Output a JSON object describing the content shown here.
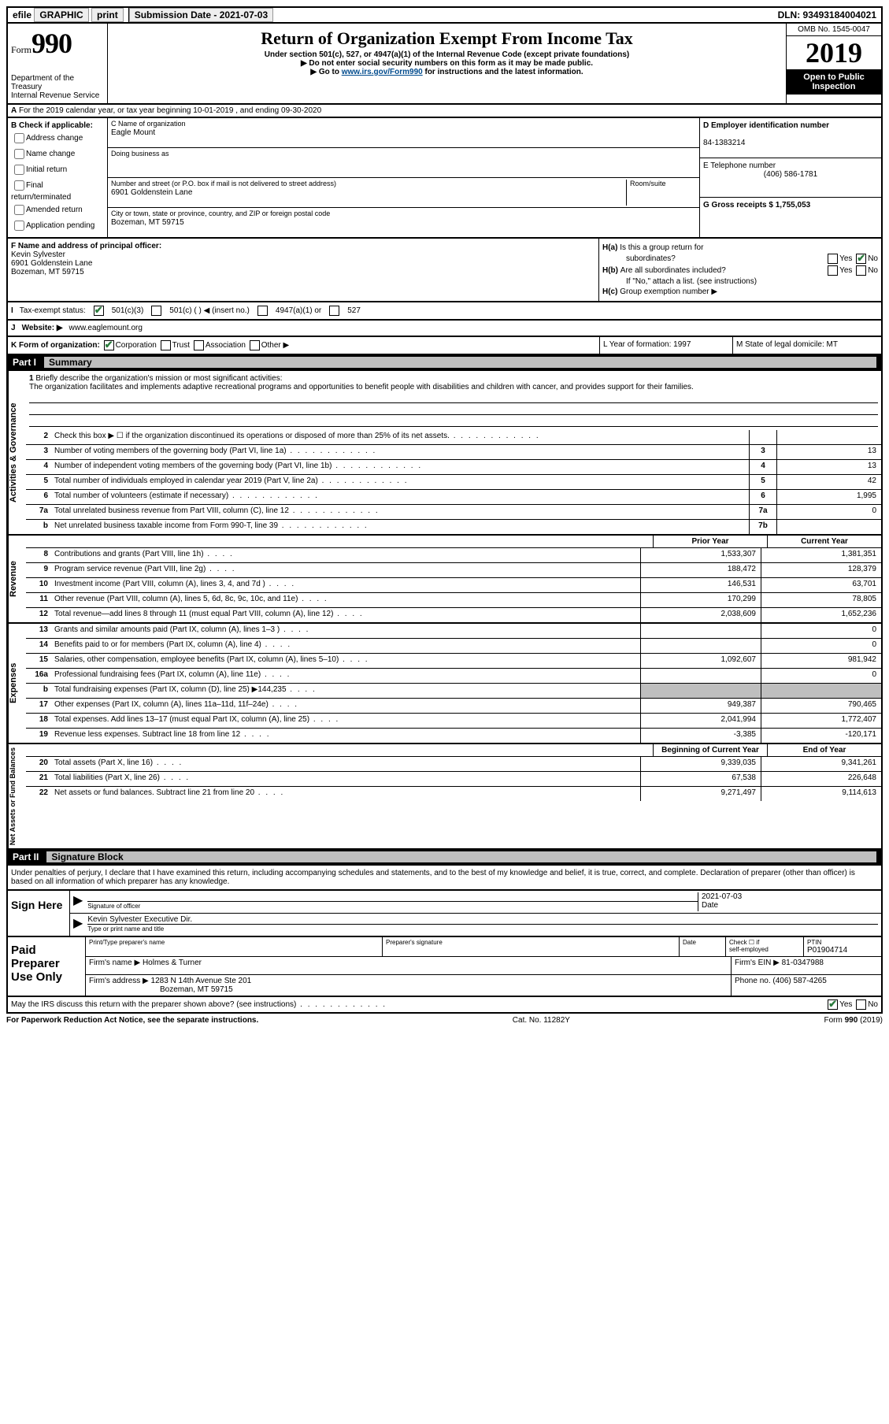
{
  "topbar": {
    "efile": "efile GRAPHIC print",
    "sub_label": "Submission Date - 2021-07-03",
    "dln": "DLN: 93493184004021"
  },
  "header": {
    "form_word": "Form",
    "form_num": "990",
    "dept": "Department of the Treasury\nInternal Revenue Service",
    "title": "Return of Organization Exempt From Income Tax",
    "sub1": "Under section 501(c), 527, or 4947(a)(1) of the Internal Revenue Code (except private foundations)",
    "sub2": "Do not enter social security numbers on this form as it may be made public.",
    "sub3_pre": "Go to ",
    "sub3_link": "www.irs.gov/Form990",
    "sub3_post": " for instructions and the latest information.",
    "omb": "OMB No. 1545-0047",
    "year": "2019",
    "otpi": "Open to Public Inspection"
  },
  "row_a": {
    "text": "For the 2019 calendar year, or tax year beginning 10-01-2019   , and ending 09-30-2020"
  },
  "section_b": {
    "hdr": "B Check if applicable:",
    "items": [
      "Address change",
      "Name change",
      "Initial return",
      "Final return/terminated",
      "Amended return",
      "Application pending"
    ]
  },
  "section_c": {
    "name_lbl": "C Name of organization",
    "name": "Eagle Mount",
    "dba_lbl": "Doing business as",
    "addr_lbl": "Number and street (or P.O. box if mail is not delivered to street address)",
    "room_lbl": "Room/suite",
    "addr": "6901 Goldenstein Lane",
    "city_lbl": "City or town, state or province, country, and ZIP or foreign postal code",
    "city": "Bozeman, MT  59715"
  },
  "section_d": {
    "ein_lbl": "D Employer identification number",
    "ein": "84-1383214",
    "tel_lbl": "E Telephone number",
    "tel": "(406) 586-1781",
    "gross_lbl": "G Gross receipts $ 1,755,053"
  },
  "section_f": {
    "lbl": "F  Name and address of principal officer:",
    "name": "Kevin Sylvester",
    "addr1": "6901 Goldenstein Lane",
    "addr2": "Bozeman, MT  59715"
  },
  "section_h": {
    "ha_lbl": "Is this a group return for",
    "ha_lbl2": "subordinates?",
    "hb_lbl": "Are all subordinates included?",
    "hb_note": "If \"No,\" attach a list. (see instructions)",
    "hc_lbl": "Group exemption number ▶"
  },
  "row_i": {
    "lbl": "Tax-exempt status:",
    "o1": "501(c)(3)",
    "o2": "501(c) (  ) ◀ (insert no.)",
    "o3": "4947(a)(1) or",
    "o4": "527"
  },
  "row_j": {
    "lbl": "Website: ▶",
    "val": "www.eaglemount.org"
  },
  "row_k": {
    "lbl": "K Form of organization:",
    "o1": "Corporation",
    "o2": "Trust",
    "o3": "Association",
    "o4": "Other ▶"
  },
  "row_l": {
    "txt": "L Year of formation: 1997"
  },
  "row_m": {
    "txt": "M State of legal domicile: MT"
  },
  "part1": {
    "num": "Part I",
    "title": "Summary"
  },
  "mission": {
    "lbl": "Briefly describe the organization's mission or most significant activities:",
    "txt": "The organization facilitates and implements adaptive recreational programs and opportunities to benefit people with disabilities and children with cancer, and provides support for their families."
  },
  "gov_lines": [
    {
      "n": "2",
      "t": "Check this box ▶ ☐  if the organization discontinued its operations or disposed of more than 25% of its net assets.",
      "box": "",
      "v": ""
    },
    {
      "n": "3",
      "t": "Number of voting members of the governing body (Part VI, line 1a)",
      "box": "3",
      "v": "13"
    },
    {
      "n": "4",
      "t": "Number of independent voting members of the governing body (Part VI, line 1b)",
      "box": "4",
      "v": "13"
    },
    {
      "n": "5",
      "t": "Total number of individuals employed in calendar year 2019 (Part V, line 2a)",
      "box": "5",
      "v": "42"
    },
    {
      "n": "6",
      "t": "Total number of volunteers (estimate if necessary)",
      "box": "6",
      "v": "1,995"
    },
    {
      "n": "7a",
      "t": "Total unrelated business revenue from Part VIII, column (C), line 12",
      "box": "7a",
      "v": "0"
    },
    {
      "n": "b",
      "t": "Net unrelated business taxable income from Form 990-T, line 39",
      "box": "7b",
      "v": ""
    }
  ],
  "col_hdr": {
    "prior": "Prior Year",
    "curr": "Current Year"
  },
  "revenue": [
    {
      "n": "8",
      "t": "Contributions and grants (Part VIII, line 1h)",
      "p": "1,533,307",
      "c": "1,381,351"
    },
    {
      "n": "9",
      "t": "Program service revenue (Part VIII, line 2g)",
      "p": "188,472",
      "c": "128,379"
    },
    {
      "n": "10",
      "t": "Investment income (Part VIII, column (A), lines 3, 4, and 7d )",
      "p": "146,531",
      "c": "63,701"
    },
    {
      "n": "11",
      "t": "Other revenue (Part VIII, column (A), lines 5, 6d, 8c, 9c, 10c, and 11e)",
      "p": "170,299",
      "c": "78,805"
    },
    {
      "n": "12",
      "t": "Total revenue—add lines 8 through 11 (must equal Part VIII, column (A), line 12)",
      "p": "2,038,609",
      "c": "1,652,236"
    }
  ],
  "expenses": [
    {
      "n": "13",
      "t": "Grants and similar amounts paid (Part IX, column (A), lines 1–3 )",
      "p": "",
      "c": "0"
    },
    {
      "n": "14",
      "t": "Benefits paid to or for members (Part IX, column (A), line 4)",
      "p": "",
      "c": "0"
    },
    {
      "n": "15",
      "t": "Salaries, other compensation, employee benefits (Part IX, column (A), lines 5–10)",
      "p": "1,092,607",
      "c": "981,942"
    },
    {
      "n": "16a",
      "t": "Professional fundraising fees (Part IX, column (A), line 11e)",
      "p": "",
      "c": "0"
    },
    {
      "n": "b",
      "t": "Total fundraising expenses (Part IX, column (D), line 25) ▶144,235",
      "p": "shade",
      "c": "shade"
    },
    {
      "n": "17",
      "t": "Other expenses (Part IX, column (A), lines 11a–11d, 11f–24e)",
      "p": "949,387",
      "c": "790,465"
    },
    {
      "n": "18",
      "t": "Total expenses. Add lines 13–17 (must equal Part IX, column (A), line 25)",
      "p": "2,041,994",
      "c": "1,772,407"
    },
    {
      "n": "19",
      "t": "Revenue less expenses. Subtract line 18 from line 12",
      "p": "-3,385",
      "c": "-120,171"
    }
  ],
  "net_hdr": {
    "beg": "Beginning of Current Year",
    "end": "End of Year"
  },
  "netassets": [
    {
      "n": "20",
      "t": "Total assets (Part X, line 16)",
      "p": "9,339,035",
      "c": "9,341,261"
    },
    {
      "n": "21",
      "t": "Total liabilities (Part X, line 26)",
      "p": "67,538",
      "c": "226,648"
    },
    {
      "n": "22",
      "t": "Net assets or fund balances. Subtract line 21 from line 20",
      "p": "9,271,497",
      "c": "9,114,613"
    }
  ],
  "part2": {
    "num": "Part II",
    "title": "Signature Block"
  },
  "sig": {
    "decl": "Under penalties of perjury, I declare that I have examined this return, including accompanying schedules and statements, and to the best of my knowledge and belief, it is true, correct, and complete. Declaration of preparer (other than officer) is based on all information of which preparer has any knowledge.",
    "sign_here": "Sign Here",
    "sig_of": "Signature of officer",
    "date_lbl": "Date",
    "date_val": "2021-07-03",
    "name": "Kevin Sylvester  Executive Dir.",
    "name_lbl": "Type or print name and title"
  },
  "prep": {
    "label": "Paid Preparer Use Only",
    "h1": "Print/Type preparer's name",
    "h2": "Preparer's signature",
    "h3": "Date",
    "h4_a": "Check ☐ if",
    "h4_b": "self-employed",
    "h5": "PTIN",
    "ptin": "P01904714",
    "firm_name_lbl": "Firm's name   ▶",
    "firm_name": "Holmes & Turner",
    "firm_ein_lbl": "Firm's EIN ▶",
    "firm_ein": "81-0347988",
    "firm_addr_lbl": "Firm's address ▶",
    "firm_addr1": "1283 N 14th Avenue Ste 201",
    "firm_addr2": "Bozeman, MT  59715",
    "phone_lbl": "Phone no.",
    "phone": "(406) 587-4265"
  },
  "discuss": {
    "txt": "May the IRS discuss this return with the preparer shown above? (see instructions)",
    "yes": "Yes",
    "no": "No"
  },
  "footer": {
    "pra": "For Paperwork Reduction Act Notice, see the separate instructions.",
    "cat": "Cat. No. 11282Y",
    "form": "Form 990 (2019)"
  },
  "side_labels": {
    "gov": "Activities & Governance",
    "rev": "Revenue",
    "exp": "Expenses",
    "net": "Net Assets or Fund Balances"
  }
}
